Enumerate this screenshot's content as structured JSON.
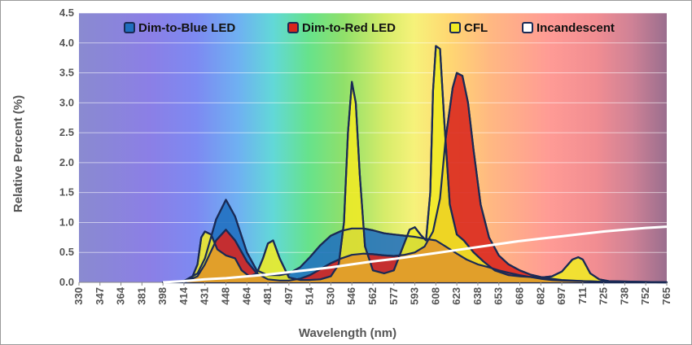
{
  "chart_data": {
    "type": "area",
    "xlabel": "Wavelength (nm)",
    "ylabel": "Relative Percent (%)",
    "x_tick_labels": [
      "330",
      "347",
      "364",
      "381",
      "398",
      "414",
      "431",
      "448",
      "464",
      "481",
      "497",
      "514",
      "530",
      "546",
      "562",
      "577",
      "593",
      "608",
      "623",
      "638",
      "653",
      "668",
      "682",
      "697",
      "711",
      "725",
      "738",
      "752",
      "765"
    ],
    "y_tick_labels": [
      "0.0",
      "0.5",
      "1.0",
      "1.5",
      "2.0",
      "2.5",
      "3.0",
      "3.5",
      "4.0",
      "4.5"
    ],
    "ylim": [
      0,
      4.5
    ],
    "legend_position": "top",
    "background": "visible-spectrum gradient",
    "series": [
      {
        "name": "Dim-to-Blue LED",
        "color": "#1f6fbf",
        "points": [
          [
            0,
            0
          ],
          [
            398,
            0
          ],
          [
            414,
            0.02
          ],
          [
            425,
            0.15
          ],
          [
            431,
            0.4
          ],
          [
            440,
            1.05
          ],
          [
            448,
            1.38
          ],
          [
            455,
            1.1
          ],
          [
            464,
            0.5
          ],
          [
            472,
            0.2
          ],
          [
            481,
            0.12
          ],
          [
            490,
            0.12
          ],
          [
            497,
            0.15
          ],
          [
            506,
            0.25
          ],
          [
            514,
            0.42
          ],
          [
            522,
            0.62
          ],
          [
            530,
            0.78
          ],
          [
            538,
            0.86
          ],
          [
            546,
            0.9
          ],
          [
            555,
            0.9
          ],
          [
            562,
            0.87
          ],
          [
            570,
            0.82
          ],
          [
            577,
            0.8
          ],
          [
            585,
            0.78
          ],
          [
            593,
            0.76
          ],
          [
            600,
            0.73
          ],
          [
            608,
            0.7
          ],
          [
            615,
            0.6
          ],
          [
            623,
            0.48
          ],
          [
            630,
            0.38
          ],
          [
            638,
            0.3
          ],
          [
            646,
            0.25
          ],
          [
            653,
            0.2
          ],
          [
            660,
            0.16
          ],
          [
            668,
            0.12
          ],
          [
            675,
            0.09
          ],
          [
            682,
            0.06
          ],
          [
            690,
            0.04
          ],
          [
            697,
            0.03
          ],
          [
            711,
            0.02
          ],
          [
            725,
            0.01
          ],
          [
            765,
            0
          ]
        ]
      },
      {
        "name": "Dim-to-Red LED",
        "color": "#d9241c",
        "points": [
          [
            0,
            0
          ],
          [
            414,
            0
          ],
          [
            425,
            0.1
          ],
          [
            431,
            0.3
          ],
          [
            440,
            0.7
          ],
          [
            448,
            0.88
          ],
          [
            455,
            0.7
          ],
          [
            464,
            0.35
          ],
          [
            472,
            0.15
          ],
          [
            481,
            0.05
          ],
          [
            490,
            0.03
          ],
          [
            497,
            0.03
          ],
          [
            506,
            0.06
          ],
          [
            514,
            0.12
          ],
          [
            522,
            0.22
          ],
          [
            530,
            0.32
          ],
          [
            538,
            0.4
          ],
          [
            546,
            0.46
          ],
          [
            555,
            0.48
          ],
          [
            562,
            0.47
          ],
          [
            570,
            0.45
          ],
          [
            577,
            0.44
          ],
          [
            585,
            0.46
          ],
          [
            593,
            0.5
          ],
          [
            600,
            0.6
          ],
          [
            606,
            0.85
          ],
          [
            611,
            1.4
          ],
          [
            615,
            2.4
          ],
          [
            620,
            3.25
          ],
          [
            623,
            3.5
          ],
          [
            627,
            3.45
          ],
          [
            631,
            3.0
          ],
          [
            635,
            2.2
          ],
          [
            640,
            1.3
          ],
          [
            646,
            0.75
          ],
          [
            653,
            0.45
          ],
          [
            660,
            0.3
          ],
          [
            668,
            0.2
          ],
          [
            675,
            0.13
          ],
          [
            682,
            0.09
          ],
          [
            690,
            0.06
          ],
          [
            697,
            0.04
          ],
          [
            711,
            0.02
          ],
          [
            725,
            0.01
          ],
          [
            765,
            0
          ]
        ]
      },
      {
        "name": "CFL",
        "color": "#f0ea24",
        "points": [
          [
            0,
            0
          ],
          [
            414,
            0
          ],
          [
            420,
            0.05
          ],
          [
            425,
            0.3
          ],
          [
            428,
            0.75
          ],
          [
            431,
            0.85
          ],
          [
            436,
            0.8
          ],
          [
            441,
            0.55
          ],
          [
            448,
            0.45
          ],
          [
            455,
            0.4
          ],
          [
            460,
            0.2
          ],
          [
            466,
            0.1
          ],
          [
            472,
            0.15
          ],
          [
            477,
            0.4
          ],
          [
            481,
            0.65
          ],
          [
            485,
            0.7
          ],
          [
            490,
            0.4
          ],
          [
            497,
            0.08
          ],
          [
            506,
            0.04
          ],
          [
            514,
            0.04
          ],
          [
            522,
            0.05
          ],
          [
            530,
            0.1
          ],
          [
            536,
            0.3
          ],
          [
            540,
            1.0
          ],
          [
            543,
            2.5
          ],
          [
            546,
            3.35
          ],
          [
            549,
            3.0
          ],
          [
            552,
            1.8
          ],
          [
            556,
            0.6
          ],
          [
            562,
            0.2
          ],
          [
            570,
            0.15
          ],
          [
            577,
            0.2
          ],
          [
            584,
            0.6
          ],
          [
            589,
            0.88
          ],
          [
            593,
            0.92
          ],
          [
            597,
            0.8
          ],
          [
            601,
            0.7
          ],
          [
            604,
            1.5
          ],
          [
            606,
            3.2
          ],
          [
            608,
            3.95
          ],
          [
            611,
            3.9
          ],
          [
            614,
            2.7
          ],
          [
            618,
            1.3
          ],
          [
            623,
            0.8
          ],
          [
            628,
            0.7
          ],
          [
            635,
            0.5
          ],
          [
            642,
            0.35
          ],
          [
            650,
            0.2
          ],
          [
            660,
            0.12
          ],
          [
            668,
            0.1
          ],
          [
            675,
            0.09
          ],
          [
            682,
            0.08
          ],
          [
            690,
            0.1
          ],
          [
            697,
            0.18
          ],
          [
            704,
            0.38
          ],
          [
            708,
            0.42
          ],
          [
            711,
            0.38
          ],
          [
            716,
            0.15
          ],
          [
            722,
            0.05
          ],
          [
            728,
            0.02
          ],
          [
            765,
            0
          ]
        ]
      },
      {
        "name": "Incandescent",
        "color": "#ffffff",
        "points": [
          [
            0,
            0
          ],
          [
            398,
            0
          ],
          [
            414,
            0.02
          ],
          [
            431,
            0.05
          ],
          [
            448,
            0.07
          ],
          [
            464,
            0.1
          ],
          [
            481,
            0.13
          ],
          [
            497,
            0.17
          ],
          [
            514,
            0.21
          ],
          [
            530,
            0.25
          ],
          [
            546,
            0.3
          ],
          [
            562,
            0.35
          ],
          [
            577,
            0.39
          ],
          [
            593,
            0.44
          ],
          [
            608,
            0.49
          ],
          [
            623,
            0.54
          ],
          [
            638,
            0.59
          ],
          [
            653,
            0.64
          ],
          [
            668,
            0.69
          ],
          [
            682,
            0.73
          ],
          [
            697,
            0.77
          ],
          [
            711,
            0.81
          ],
          [
            725,
            0.85
          ],
          [
            738,
            0.88
          ],
          [
            752,
            0.91
          ],
          [
            765,
            0.93
          ]
        ]
      }
    ],
    "overlap_color": "#e09a2a"
  }
}
